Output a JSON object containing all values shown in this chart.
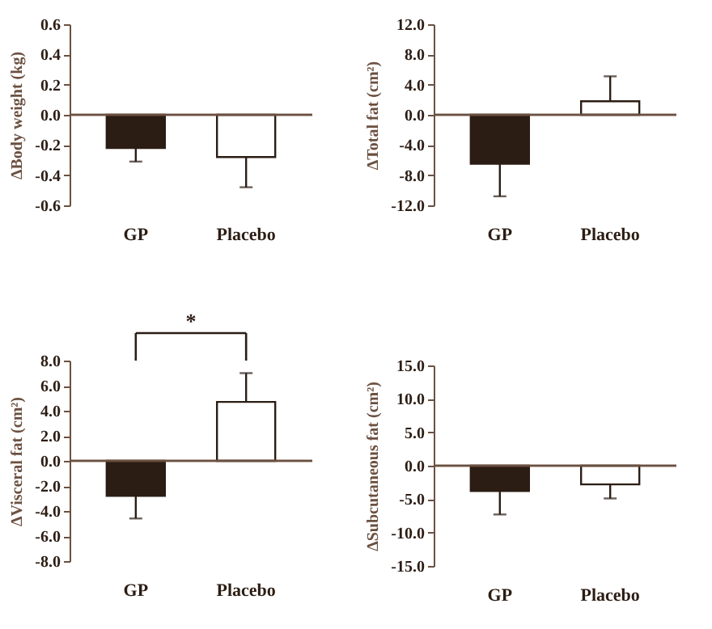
{
  "chart_data": [
    {
      "type": "bar",
      "ylabel": "ΔBody weight (kg)",
      "categories": [
        "GP",
        "Placebo"
      ],
      "values": [
        -0.22,
        -0.28
      ],
      "colors": [
        "#2b1d14",
        "#ffffff"
      ],
      "errors": [
        [
          -0.31,
          -0.22
        ],
        [
          -0.48,
          -0.28
        ]
      ],
      "ylim": [
        -0.6,
        0.6
      ],
      "yticks": [
        {
          "value": -0.6,
          "label": "-0.6"
        },
        {
          "value": -0.4,
          "label": "-0.4"
        },
        {
          "value": -0.2,
          "label": "-0.2"
        },
        {
          "value": 0,
          "label": "0.0"
        },
        {
          "value": 0.2,
          "label": "0.2"
        },
        {
          "value": 0.4,
          "label": "0.4"
        },
        {
          "value": 0.6,
          "label": "0.6"
        }
      ]
    },
    {
      "type": "bar",
      "ylabel": "ΔTotal fat (cm²)",
      "categories": [
        "GP",
        "Placebo"
      ],
      "values": [
        -6.5,
        1.8
      ],
      "colors": [
        "#2b1d14",
        "#ffffff"
      ],
      "errors": [
        [
          -10.8,
          -6.5
        ],
        [
          1.8,
          5.1
        ]
      ],
      "ylim": [
        -12,
        12
      ],
      "yticks": [
        {
          "value": -12,
          "label": "-12.0"
        },
        {
          "value": -8,
          "label": "-8.0"
        },
        {
          "value": -4,
          "label": "-4.0"
        },
        {
          "value": 0,
          "label": "0.0"
        },
        {
          "value": 4,
          "label": "4.0"
        },
        {
          "value": 8,
          "label": "8.0"
        },
        {
          "value": 12,
          "label": "12.0"
        }
      ]
    },
    {
      "type": "bar",
      "ylabel": "ΔVisceral fat (cm²)",
      "categories": [
        "GP",
        "Placebo"
      ],
      "values": [
        -2.8,
        4.7
      ],
      "colors": [
        "#2b1d14",
        "#ffffff"
      ],
      "errors": [
        [
          -4.6,
          -2.8
        ],
        [
          4.7,
          7.0
        ]
      ],
      "ylim": [
        -8,
        8
      ],
      "yticks": [
        {
          "value": -8,
          "label": "-8.0"
        },
        {
          "value": -6,
          "label": "-6.0"
        },
        {
          "value": -4,
          "label": "-4.0"
        },
        {
          "value": -2,
          "label": "-2.0"
        },
        {
          "value": 0,
          "label": "0.0"
        },
        {
          "value": 2,
          "label": "2.0"
        },
        {
          "value": 4,
          "label": "4.0"
        },
        {
          "value": 6,
          "label": "6.0"
        },
        {
          "value": 8,
          "label": "8.0"
        }
      ],
      "annotations": [
        "*"
      ]
    },
    {
      "type": "bar",
      "ylabel": "ΔSubcutaneous fat (cm²)",
      "categories": [
        "GP",
        "Placebo"
      ],
      "values": [
        -3.8,
        -2.8
      ],
      "colors": [
        "#2b1d14",
        "#ffffff"
      ],
      "errors": [
        [
          -7.3,
          -3.8
        ],
        [
          -4.9,
          -2.8
        ]
      ],
      "ylim": [
        -15,
        15
      ],
      "yticks": [
        {
          "value": -15,
          "label": "-15.0"
        },
        {
          "value": -10,
          "label": "-10.0"
        },
        {
          "value": -5,
          "label": "-5.0"
        },
        {
          "value": 0,
          "label": "0.0"
        },
        {
          "value": 5,
          "label": "5.0"
        },
        {
          "value": 10,
          "label": "10.0"
        },
        {
          "value": 15,
          "label": "15.0"
        }
      ]
    }
  ]
}
